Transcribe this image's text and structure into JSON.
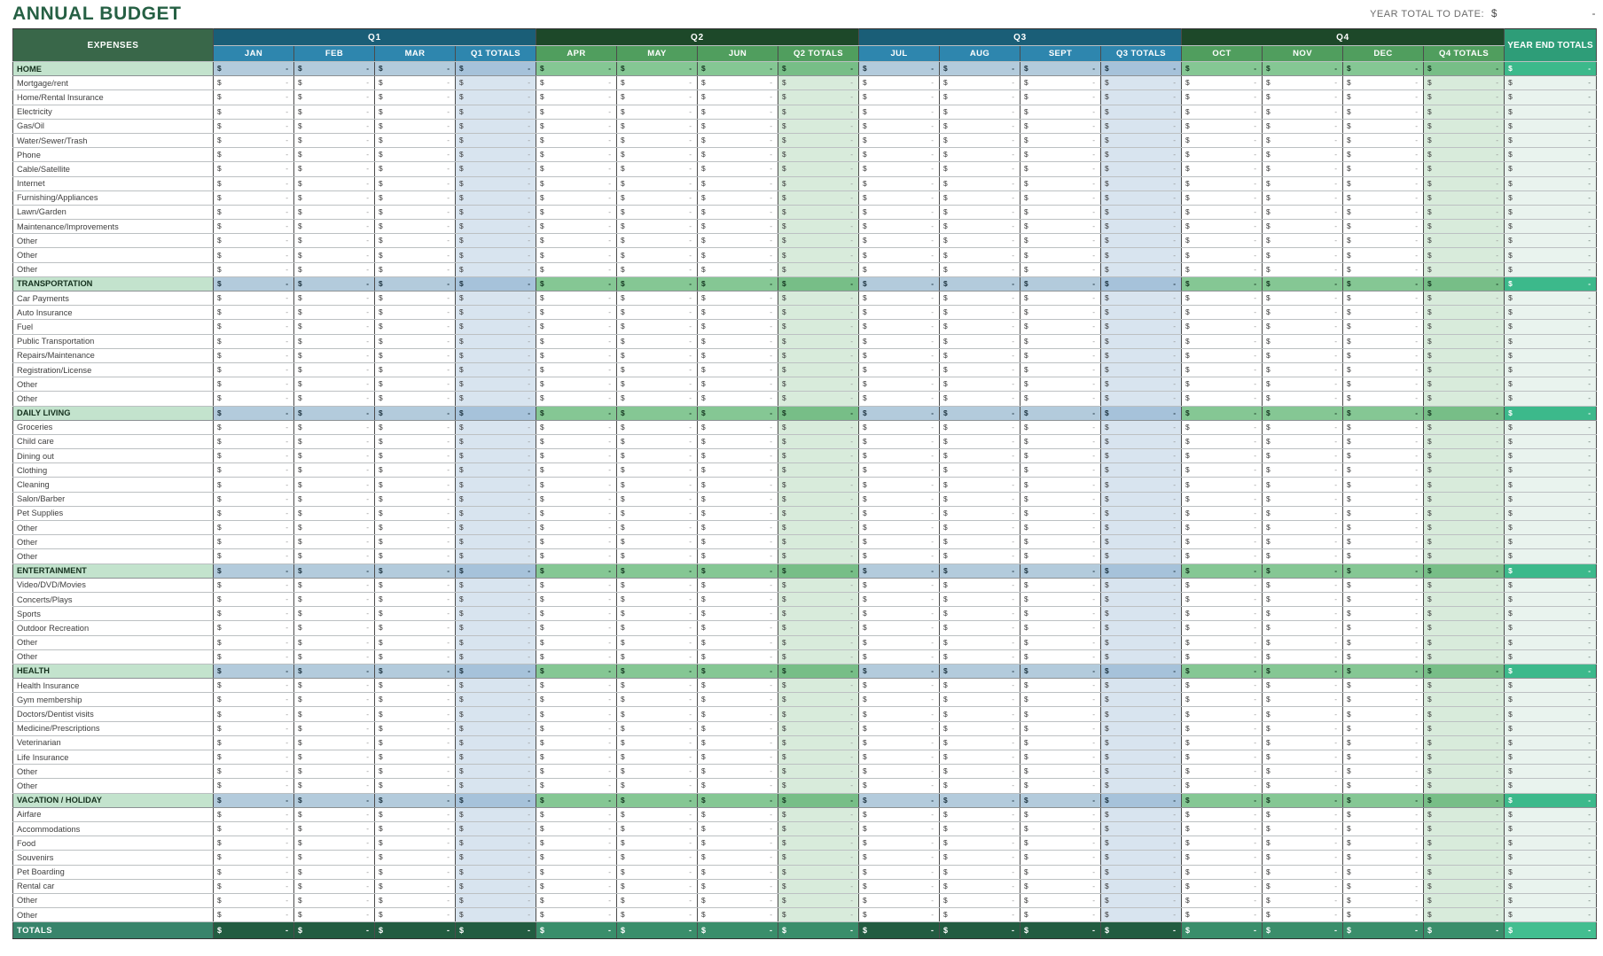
{
  "page": {
    "title": "ANNUAL BUDGET",
    "year_total_label": "YEAR TOTAL TO DATE:",
    "currency_symbol": "$",
    "empty_value": "-"
  },
  "table": {
    "expenses_header": "EXPENSES",
    "year_end_header": "YEAR END TOTALS",
    "totals_label": "TOTALS",
    "quarters": [
      {
        "label": "Q1",
        "theme": "blue",
        "months": [
          "JAN",
          "FEB",
          "MAR"
        ],
        "totals_label": "Q1 TOTALS"
      },
      {
        "label": "Q2",
        "theme": "green",
        "months": [
          "APR",
          "MAY",
          "JUN"
        ],
        "totals_label": "Q2 TOTALS"
      },
      {
        "label": "Q3",
        "theme": "blue",
        "months": [
          "JUL",
          "AUG",
          "SEPT"
        ],
        "totals_label": "Q3 TOTALS"
      },
      {
        "label": "Q4",
        "theme": "green",
        "months": [
          "OCT",
          "NOV",
          "DEC"
        ],
        "totals_label": "Q4 TOTALS"
      }
    ],
    "sections": [
      {
        "name": "HOME",
        "items": [
          "Mortgage/rent",
          "Home/Rental Insurance",
          "Electricity",
          "Gas/Oil",
          "Water/Sewer/Trash",
          "Phone",
          "Cable/Satellite",
          "Internet",
          "Furnishing/Appliances",
          "Lawn/Garden",
          "Maintenance/Improvements",
          "Other",
          "Other",
          "Other"
        ]
      },
      {
        "name": "TRANSPORTATION",
        "items": [
          "Car Payments",
          "Auto Insurance",
          "Fuel",
          "Public Transportation",
          "Repairs/Maintenance",
          "Registration/License",
          "Other",
          "Other"
        ]
      },
      {
        "name": "DAILY LIVING",
        "items": [
          "Groceries",
          "Child care",
          "Dining out",
          "Clothing",
          "Cleaning",
          "Salon/Barber",
          "Pet Supplies",
          "Other",
          "Other",
          "Other"
        ]
      },
      {
        "name": "ENTERTAINMENT",
        "items": [
          "Video/DVD/Movies",
          "Concerts/Plays",
          "Sports",
          "Outdoor Recreation",
          "Other",
          "Other"
        ]
      },
      {
        "name": "HEALTH",
        "items": [
          "Health Insurance",
          "Gym membership",
          "Doctors/Dentist visits",
          "Medicine/Prescriptions",
          "Veterinarian",
          "Life Insurance",
          "Other",
          "Other"
        ]
      },
      {
        "name": "VACATION / HOLIDAY",
        "items": [
          "Airfare",
          "Accommodations",
          "Food",
          "Souvenirs",
          "Pet Boarding",
          "Rental car",
          "Other",
          "Other"
        ]
      }
    ]
  },
  "colors": {
    "title_color": "#266044",
    "hdr_expenses": "#396749",
    "q_dark_blue": "#1A5E77",
    "q_month_blue": "#2E86AE",
    "q_dark_green": "#1D4829",
    "q_month_green": "#509E5E",
    "yend_hdr": "#2E9D78",
    "sec_label_bg": "#C3E3CD",
    "sec_blue": "#B3CBDC",
    "sec_blue_tot": "#A6C2DA",
    "sec_green": "#85C794",
    "sec_green_tot": "#77BE87",
    "sec_yend": "#3CB98B",
    "col_blue_tint": "#D8E4EF",
    "col_green_tint": "#D8EBDB",
    "col_yend_tint": "#E9F3EE",
    "tot_label": "#38846B",
    "tot_blue": "#225C41",
    "tot_green": "#3A8E6B",
    "tot_yend": "#43BE90"
  }
}
